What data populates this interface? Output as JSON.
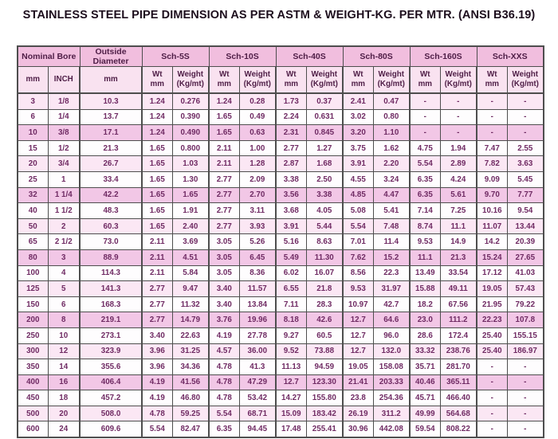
{
  "title": "STAINLESS STEEL PIPE DIMENSION AS PER ASTM & WEIGHT-KG. PER MTR. (ANSI B36.19)",
  "colors": {
    "title_color": "#1d0e1d",
    "border_color": "#4e4e4e",
    "header_pink": "#f1bede",
    "subheader_pink": "#f9e2f0",
    "row_pink_dark": "#f2c7e6",
    "row_pink_light": "#fbe7f4",
    "header_text": "#4e1d46",
    "cell_text": "#6f2a63"
  },
  "table": {
    "group_headers": [
      {
        "label": "Nominal Bore",
        "span": 2
      },
      {
        "label": "Outside Diameter",
        "span": 1
      },
      {
        "label": "Sch-5S",
        "span": 2
      },
      {
        "label": "Sch-10S",
        "span": 2
      },
      {
        "label": "Sch-40S",
        "span": 2
      },
      {
        "label": "Sch-80S",
        "span": 2
      },
      {
        "label": "Sch-160S",
        "span": 2
      },
      {
        "label": "Sch-XXS",
        "span": 2
      }
    ],
    "sub_headers": [
      "mm",
      "INCH",
      "mm",
      "Wt\nmm",
      "Weight\n(Kg/mt)",
      "Wt\nmm",
      "Weight\n(Kg/mt)",
      "Wt\nmm",
      "Weight\n(Kg/mt)",
      "Wt\nmm",
      "Weight\n(Kg/mt)",
      "Wt\nmm",
      "Weight\n(Kg/mt)",
      "Wt\nmm",
      "Weight\n(Kg/mt)"
    ],
    "rows": [
      [
        "3",
        "1/8",
        "10.3",
        "1.24",
        "0.276",
        "1.24",
        "0.28",
        "1.73",
        "0.37",
        "2.41",
        "0.47",
        "-",
        "-",
        "-",
        "-"
      ],
      [
        "6",
        "1/4",
        "13.7",
        "1.24",
        "0.390",
        "1.65",
        "0.49",
        "2.24",
        "0.631",
        "3.02",
        "0.80",
        "-",
        "-",
        "-",
        "-"
      ],
      [
        "10",
        "3/8",
        "17.1",
        "1.24",
        "0.490",
        "1.65",
        "0.63",
        "2.31",
        "0.845",
        "3.20",
        "1.10",
        "-",
        "-",
        "-",
        "-"
      ],
      [
        "15",
        "1/2",
        "21.3",
        "1.65",
        "0.800",
        "2.11",
        "1.00",
        "2.77",
        "1.27",
        "3.75",
        "1.62",
        "4.75",
        "1.94",
        "7.47",
        "2.55"
      ],
      [
        "20",
        "3/4",
        "26.7",
        "1.65",
        "1.03",
        "2.11",
        "1.28",
        "2.87",
        "1.68",
        "3.91",
        "2.20",
        "5.54",
        "2.89",
        "7.82",
        "3.63"
      ],
      [
        "25",
        "1",
        "33.4",
        "1.65",
        "1.30",
        "2.77",
        "2.09",
        "3.38",
        "2.50",
        "4.55",
        "3.24",
        "6.35",
        "4.24",
        "9.09",
        "5.45"
      ],
      [
        "32",
        "1 1/4",
        "42.2",
        "1.65",
        "1.65",
        "2.77",
        "2.70",
        "3.56",
        "3.38",
        "4.85",
        "4.47",
        "6.35",
        "5.61",
        "9.70",
        "7.77"
      ],
      [
        "40",
        "1 1/2",
        "48.3",
        "1.65",
        "1.91",
        "2.77",
        "3.11",
        "3.68",
        "4.05",
        "5.08",
        "5.41",
        "7.14",
        "7.25",
        "10.16",
        "9.54"
      ],
      [
        "50",
        "2",
        "60.3",
        "1.65",
        "2.40",
        "2.77",
        "3.93",
        "3.91",
        "5.44",
        "5.54",
        "7.48",
        "8.74",
        "11.1",
        "11.07",
        "13.44"
      ],
      [
        "65",
        "2 1/2",
        "73.0",
        "2.11",
        "3.69",
        "3.05",
        "5.26",
        "5.16",
        "8.63",
        "7.01",
        "11.4",
        "9.53",
        "14.9",
        "14.2",
        "20.39"
      ],
      [
        "80",
        "3",
        "88.9",
        "2.11",
        "4.51",
        "3.05",
        "6.45",
        "5.49",
        "11.30",
        "7.62",
        "15.2",
        "11.1",
        "21.3",
        "15.24",
        "27.65"
      ],
      [
        "100",
        "4",
        "114.3",
        "2.11",
        "5.84",
        "3.05",
        "8.36",
        "6.02",
        "16.07",
        "8.56",
        "22.3",
        "13.49",
        "33.54",
        "17.12",
        "41.03"
      ],
      [
        "125",
        "5",
        "141.3",
        "2.77",
        "9.47",
        "3.40",
        "11.57",
        "6.55",
        "21.8",
        "9.53",
        "31.97",
        "15.88",
        "49.11",
        "19.05",
        "57.43"
      ],
      [
        "150",
        "6",
        "168.3",
        "2.77",
        "11.32",
        "3.40",
        "13.84",
        "7.11",
        "28.3",
        "10.97",
        "42.7",
        "18.2",
        "67.56",
        "21.95",
        "79.22"
      ],
      [
        "200",
        "8",
        "219.1",
        "2.77",
        "14.79",
        "3.76",
        "19.96",
        "8.18",
        "42.6",
        "12.7",
        "64.6",
        "23.0",
        "111.2",
        "22.23",
        "107.8"
      ],
      [
        "250",
        "10",
        "273.1",
        "3.40",
        "22.63",
        "4.19",
        "27.78",
        "9.27",
        "60.5",
        "12.7",
        "96.0",
        "28.6",
        "172.4",
        "25.40",
        "155.15"
      ],
      [
        "300",
        "12",
        "323.9",
        "3.96",
        "31.25",
        "4.57",
        "36.00",
        "9.52",
        "73.88",
        "12.7",
        "132.0",
        "33.32",
        "238.76",
        "25.40",
        "186.97"
      ],
      [
        "350",
        "14",
        "355.6",
        "3.96",
        "34.36",
        "4.78",
        "41.3",
        "11.13",
        "94.59",
        "19.05",
        "158.08",
        "35.71",
        "281.70",
        "-",
        "-"
      ],
      [
        "400",
        "16",
        "406.4",
        "4.19",
        "41.56",
        "4.78",
        "47.29",
        "12.7",
        "123.30",
        "21.41",
        "203.33",
        "40.46",
        "365.11",
        "-",
        "-"
      ],
      [
        "450",
        "18",
        "457.2",
        "4.19",
        "46.80",
        "4.78",
        "53.42",
        "14.27",
        "155.80",
        "23.8",
        "254.36",
        "45.71",
        "466.40",
        "-",
        "-"
      ],
      [
        "500",
        "20",
        "508.0",
        "4.78",
        "59.25",
        "5.54",
        "68.71",
        "15.09",
        "183.42",
        "26.19",
        "311.2",
        "49.99",
        "564.68",
        "-",
        "-"
      ],
      [
        "600",
        "24",
        "609.6",
        "5.54",
        "82.47",
        "6.35",
        "94.45",
        "17.48",
        "255.41",
        "30.96",
        "442.08",
        "59.54",
        "808.22",
        "-",
        "-"
      ]
    ]
  }
}
